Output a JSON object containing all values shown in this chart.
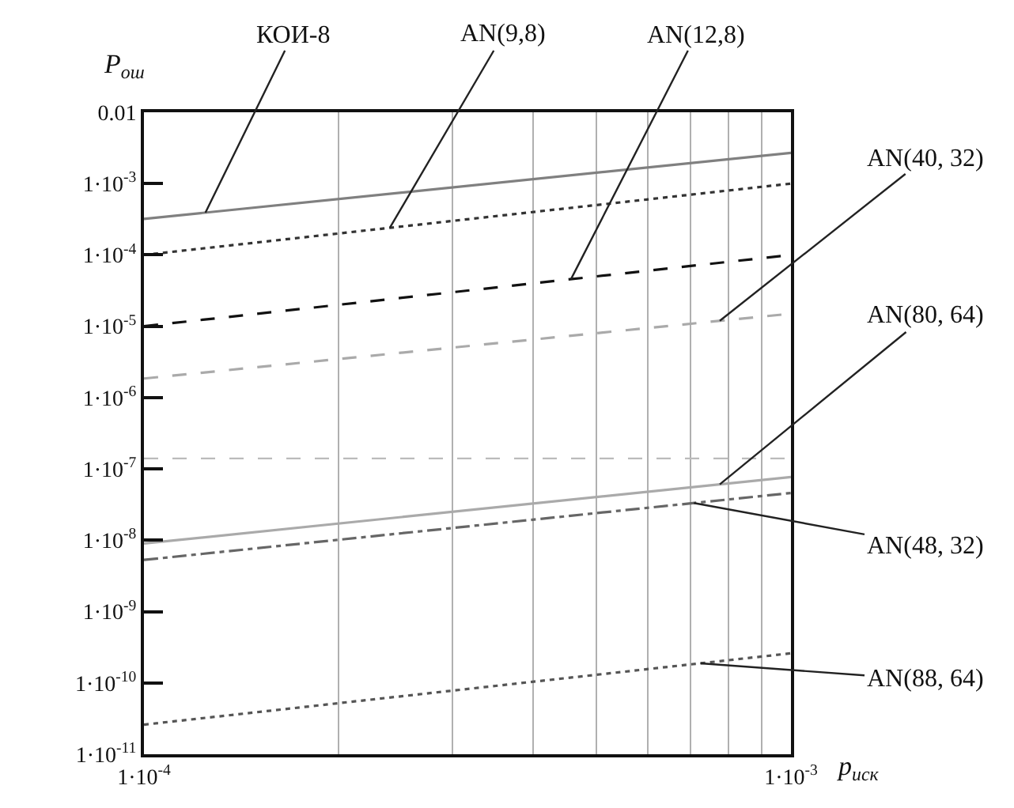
{
  "chart_data": {
    "type": "line",
    "xlabel": "p$_{иск}$",
    "ylabel": "P$_{ош}$",
    "x": [
      0.0001,
      0.001
    ],
    "series": [
      {
        "name": "КОИ-8",
        "color": "#808080",
        "line_style": "solid",
        "values": [
          0.00032,
          0.0027
        ]
      },
      {
        "name": "AN(9,8)",
        "color": "#333333",
        "line_style": "dotted",
        "values": [
          0.0001,
          0.001
        ]
      },
      {
        "name": "AN(12,8)",
        "color": "#111111",
        "line_style": "dashed",
        "values": [
          1e-05,
          0.0001
        ]
      },
      {
        "name": "AN(40, 32)",
        "color": "#aaaaaa",
        "line_style": "dashed",
        "values": [
          1.85e-06,
          1.5e-05
        ]
      },
      {
        "name": "AN(80, 64)",
        "color": "#aaaaaa",
        "line_style": "solid",
        "values": [
          9e-09,
          7.7e-08
        ]
      },
      {
        "name": "AN(48, 32)",
        "color": "#666666",
        "line_style": "dashdot",
        "values": [
          5.3e-09,
          4.6e-08
        ]
      },
      {
        "name": "AN(88, 64)",
        "color": "#555555",
        "line_style": "dotted",
        "values": [
          2.6e-11,
          2.6e-10
        ]
      }
    ],
    "ref_lines": [
      {
        "axis": "y",
        "value": 1.4e-07,
        "color": "#bbbbbb",
        "line_style": "dashed"
      }
    ],
    "xlim": [
      0.0001,
      0.001
    ],
    "ylim": [
      1e-11,
      0.01
    ],
    "xticks": [
      {
        "value": 0.0001,
        "label": "1·10$^{-4}$"
      },
      {
        "value": 0.0002,
        "label": null
      },
      {
        "value": 0.0003,
        "label": null
      },
      {
        "value": 0.0004,
        "label": null
      },
      {
        "value": 0.0005,
        "label": null
      },
      {
        "value": 0.0006,
        "label": null
      },
      {
        "value": 0.0007,
        "label": null
      },
      {
        "value": 0.0008,
        "label": null
      },
      {
        "value": 0.0009,
        "label": null
      },
      {
        "value": 0.001,
        "label": "1·10$^{-3}$"
      }
    ],
    "yticks": [
      {
        "value": 1e-11,
        "label": "1·10$^{-11}$"
      },
      {
        "value": 1e-10,
        "label": "1·10$^{-10}$"
      },
      {
        "value": 1e-09,
        "label": "1·10$^{-9}$"
      },
      {
        "value": 1e-08,
        "label": "1·10$^{-8}$"
      },
      {
        "value": 1e-07,
        "label": "1·10$^{-7}$"
      },
      {
        "value": 1e-06,
        "label": "1·10$^{-6}$"
      },
      {
        "value": 1e-05,
        "label": "1·10$^{-5}$"
      },
      {
        "value": 0.0001,
        "label": "1·10$^{-4}$"
      },
      {
        "value": 0.001,
        "label": "1·10$^{-3}$"
      },
      {
        "value": 0.01,
        "label": "0.01"
      }
    ],
    "log": "xy",
    "grid": "x",
    "legend": false
  }
}
